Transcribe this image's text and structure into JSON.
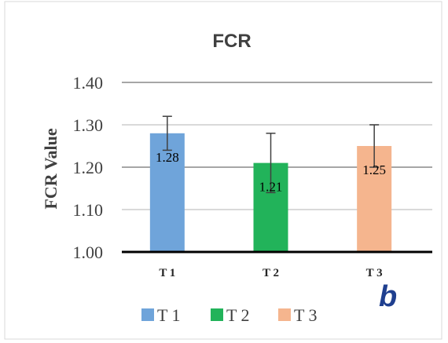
{
  "chart_data": {
    "type": "bar",
    "title": "FCR",
    "ylabel": "FCR Value",
    "xlabel": "",
    "ylim": [
      1.0,
      1.4
    ],
    "yticks": [
      "1.00",
      "1.10",
      "1.20",
      "1.30",
      "1.40"
    ],
    "ytick_values": [
      1.0,
      1.1,
      1.2,
      1.3,
      1.4
    ],
    "grid": true,
    "legend_position": "bottom",
    "categories": [
      "T 1",
      "T 2",
      "T 3"
    ],
    "values": [
      1.28,
      1.21,
      1.25
    ],
    "value_labels": [
      "1.28",
      "1.21",
      "1.25"
    ],
    "error_low": [
      1.24,
      1.14,
      1.2
    ],
    "error_high": [
      1.32,
      1.28,
      1.3
    ],
    "colors": [
      "#6FA4DA",
      "#22B35A",
      "#F5B58E"
    ],
    "legend": [
      "T 1",
      "T 2",
      "T 3"
    ]
  },
  "panel_label": "b"
}
